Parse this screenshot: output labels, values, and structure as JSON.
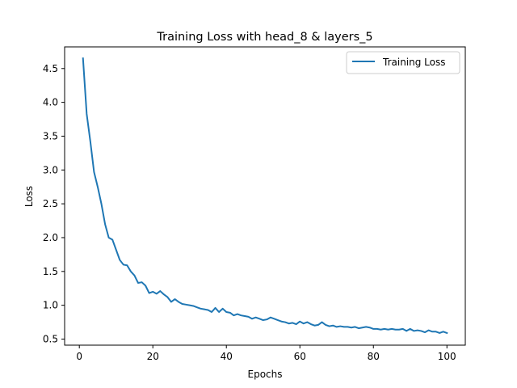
{
  "chart_data": {
    "type": "line",
    "title": "Training Loss with head_8 & layers_5",
    "xlabel": "Epochs",
    "ylabel": "Loss",
    "xlim": [
      -4,
      105
    ],
    "ylim": [
      0.41,
      4.82
    ],
    "xticks": [
      0,
      20,
      40,
      60,
      80,
      100
    ],
    "yticks": [
      0.5,
      1.0,
      1.5,
      2.0,
      2.5,
      3.0,
      3.5,
      4.0,
      4.5
    ],
    "xtick_labels": [
      "0",
      "20",
      "40",
      "60",
      "80",
      "100"
    ],
    "ytick_labels": [
      "0.5",
      "1.0",
      "1.5",
      "2.0",
      "2.5",
      "3.0",
      "3.5",
      "4.0",
      "4.5"
    ],
    "grid": false,
    "legend_position": "top-right",
    "series": [
      {
        "name": "Training Loss",
        "color": "#1f77b4",
        "x": [
          1,
          2,
          3,
          4,
          5,
          6,
          7,
          8,
          9,
          10,
          11,
          12,
          13,
          14,
          15,
          16,
          17,
          18,
          19,
          20,
          21,
          22,
          23,
          24,
          25,
          26,
          27,
          28,
          29,
          30,
          31,
          32,
          33,
          34,
          35,
          36,
          37,
          38,
          39,
          40,
          41,
          42,
          43,
          44,
          45,
          46,
          47,
          48,
          49,
          50,
          51,
          52,
          53,
          54,
          55,
          56,
          57,
          58,
          59,
          60,
          61,
          62,
          63,
          64,
          65,
          66,
          67,
          68,
          69,
          70,
          71,
          72,
          73,
          74,
          75,
          76,
          77,
          78,
          79,
          80,
          81,
          82,
          83,
          84,
          85,
          86,
          87,
          88,
          89,
          90,
          91,
          92,
          93,
          94,
          95,
          96,
          97,
          98,
          99,
          100
        ],
        "y": [
          4.65,
          3.83,
          3.42,
          2.97,
          2.75,
          2.5,
          2.2,
          2.0,
          1.97,
          1.82,
          1.67,
          1.6,
          1.59,
          1.5,
          1.44,
          1.33,
          1.34,
          1.29,
          1.18,
          1.2,
          1.17,
          1.21,
          1.16,
          1.12,
          1.05,
          1.09,
          1.05,
          1.02,
          1.01,
          1.0,
          0.99,
          0.97,
          0.95,
          0.94,
          0.93,
          0.9,
          0.96,
          0.9,
          0.95,
          0.9,
          0.89,
          0.85,
          0.87,
          0.85,
          0.84,
          0.83,
          0.8,
          0.82,
          0.8,
          0.78,
          0.79,
          0.82,
          0.8,
          0.78,
          0.76,
          0.75,
          0.73,
          0.74,
          0.72,
          0.76,
          0.73,
          0.75,
          0.72,
          0.7,
          0.71,
          0.75,
          0.71,
          0.69,
          0.7,
          0.68,
          0.69,
          0.68,
          0.68,
          0.67,
          0.68,
          0.66,
          0.67,
          0.68,
          0.67,
          0.65,
          0.65,
          0.64,
          0.65,
          0.64,
          0.65,
          0.64,
          0.64,
          0.65,
          0.62,
          0.65,
          0.62,
          0.63,
          0.62,
          0.6,
          0.63,
          0.61,
          0.61,
          0.59,
          0.61,
          0.59
        ]
      }
    ]
  }
}
